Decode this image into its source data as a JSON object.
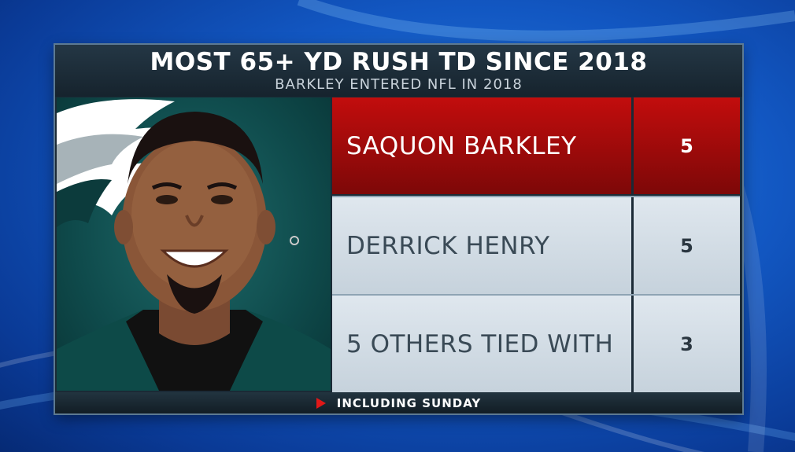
{
  "header": {
    "title": "MOST 65+ YD RUSH TD SINCE 2018",
    "subtitle": "BARKLEY ENTERED NFL IN 2018"
  },
  "rows": [
    {
      "name": "SAQUON BARKLEY",
      "value": "5",
      "highlight": true
    },
    {
      "name": "DERRICK HENRY",
      "value": "5",
      "highlight": false
    },
    {
      "name": "5 OTHERS TIED WITH",
      "value": "3",
      "highlight": false
    }
  ],
  "footer": {
    "text": "INCLUDING SUNDAY"
  },
  "colors": {
    "highlight_red": "#b00b0b",
    "row_light": "#d6dfe7",
    "board_dark": "#1b2a36",
    "background_blue": "#1257c2",
    "team_green": "#0f4b4c"
  },
  "icons": {
    "footer_bullet": "play-arrow-icon",
    "team_logo": "eagles-wing-logo"
  }
}
